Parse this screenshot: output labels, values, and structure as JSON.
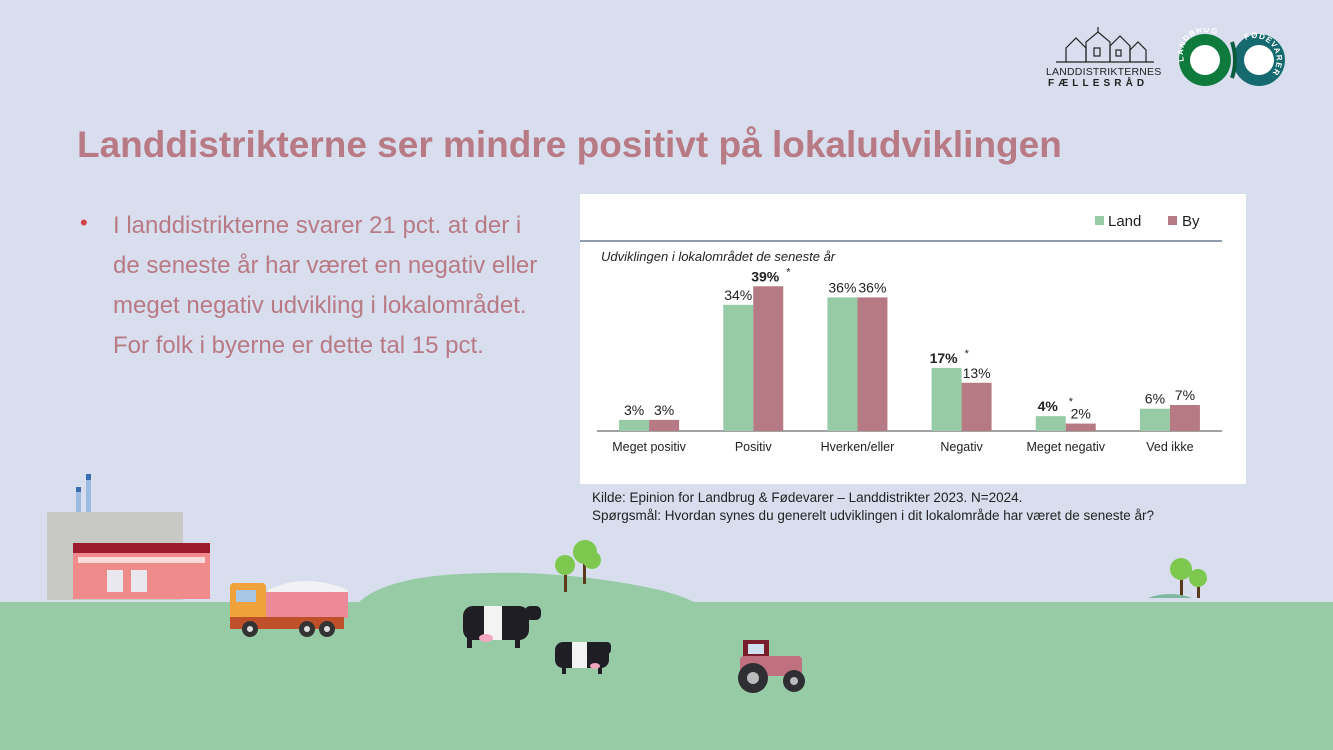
{
  "slide": {
    "title": "Landdistrikterne ser mindre positivt på lokaludviklingen",
    "bullet": "I landdistrikterne svarer 21 pct. at der i de seneste år har været en negativ eller meget negativ udvikling i lokalområdet. For folk i byerne er dette tal 15 pct.",
    "source_line1": "Kilde: Epinion for Landbrug & Fødevarer – Landdistrikter 2023. N=2024.",
    "source_line2": "Spørgsmål: Hvordan synes du generelt udviklingen i dit lokalområde har været de seneste år?",
    "logo_left_line1": "LANDDISTRIKTERNES",
    "logo_left_line2": "FÆLLESRÅD",
    "logo_right_text_left": "LANDBRUG",
    "logo_right_text_right": "FØDEVARER"
  },
  "colors": {
    "land": "#97cba6",
    "by": "#b57a83",
    "title": "#b87a84",
    "background": "#d8deee",
    "grass": "#96cba6"
  },
  "chart_data": {
    "type": "bar",
    "subtitle": "Udviklingen i lokalområdet de seneste år",
    "categories": [
      "Meget positiv",
      "Positiv",
      "Hverken/eller",
      "Negativ",
      "Meget negativ",
      "Ved ikke"
    ],
    "series": [
      {
        "name": "Land",
        "values": [
          3,
          34,
          36,
          17,
          4,
          6
        ],
        "labels": [
          "3%",
          "34%",
          "36%",
          "17%",
          "4%",
          "6%"
        ],
        "significant": [
          false,
          false,
          false,
          true,
          true,
          false
        ]
      },
      {
        "name": "By",
        "values": [
          3,
          39,
          36,
          13,
          2,
          7
        ],
        "labels": [
          "3%",
          "39%",
          "36%",
          "13%",
          "2%",
          "7%"
        ],
        "significant": [
          false,
          true,
          false,
          false,
          false,
          false
        ]
      }
    ],
    "significance_marker": "*",
    "ylim": [
      0,
      45
    ],
    "legend_position": "top-right",
    "grid": false
  }
}
